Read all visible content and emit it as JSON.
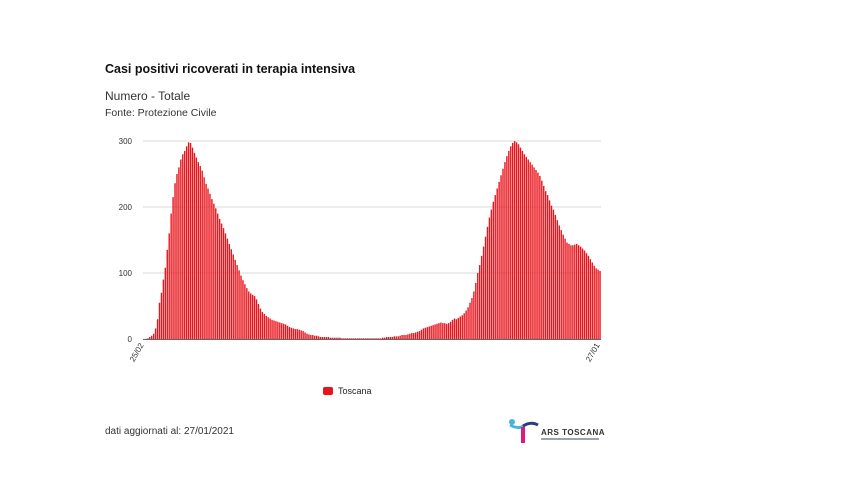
{
  "header": {
    "title": "Casi positivi ricoverati in terapia intensiva",
    "subtitle": "Numero - Totale",
    "source": "Fonte: Protezione Civile"
  },
  "footer": {
    "updated": "dati aggiornati al: 27/01/2021",
    "logo_text": "ARS TOSCANA"
  },
  "colors": {
    "bar": "#e8141b",
    "grid": "#d8d8d8",
    "axis": "#666666"
  },
  "chart_data": {
    "type": "bar",
    "title": "Casi positivi ricoverati in terapia intensiva",
    "subtitle": "Numero - Totale",
    "xlabel": "",
    "ylabel": "",
    "ylim": [
      0,
      300
    ],
    "y_ticks": [
      0,
      100,
      200,
      300
    ],
    "y_tick_labels": [
      "0",
      "100",
      "200",
      "300"
    ],
    "x_tick_labels": [
      "25/02",
      "27/01"
    ],
    "grid": true,
    "legend_position": "bottom",
    "series": [
      {
        "name": "Toscana",
        "color": "#e8141b",
        "values": [
          0,
          0,
          1,
          3,
          5,
          8,
          16,
          30,
          55,
          70,
          90,
          108,
          135,
          160,
          190,
          215,
          236,
          250,
          260,
          272,
          280,
          285,
          292,
          298,
          297,
          290,
          282,
          275,
          268,
          262,
          255,
          245,
          235,
          228,
          220,
          212,
          205,
          198,
          190,
          182,
          175,
          168,
          160,
          152,
          144,
          136,
          128,
          120,
          112,
          104,
          96,
          89,
          83,
          77,
          72,
          69,
          67,
          65,
          60,
          53,
          46,
          41,
          38,
          35,
          33,
          31,
          29,
          28,
          27,
          26,
          25,
          24,
          23,
          22,
          20,
          18,
          17,
          16,
          15,
          15,
          14,
          13,
          12,
          10,
          8,
          7,
          6,
          6,
          5,
          5,
          4,
          3,
          3,
          3,
          3,
          3,
          2,
          2,
          2,
          2,
          2,
          2,
          1,
          1,
          1,
          1,
          1,
          1,
          1,
          1,
          1,
          1,
          1,
          1,
          1,
          1,
          1,
          1,
          1,
          1,
          1,
          1,
          1,
          2,
          2,
          3,
          3,
          3,
          3,
          4,
          4,
          4,
          5,
          6,
          6,
          6,
          7,
          8,
          9,
          9,
          10,
          11,
          12,
          14,
          16,
          17,
          18,
          19,
          20,
          21,
          22,
          23,
          24,
          25,
          24,
          24,
          23,
          24,
          26,
          29,
          31,
          30,
          32,
          34,
          36,
          39,
          43,
          48,
          55,
          62,
          72,
          85,
          100,
          112,
          126,
          140,
          155,
          170,
          184,
          196,
          208,
          218,
          228,
          238,
          248,
          258,
          268,
          277,
          285,
          292,
          297,
          300,
          298,
          295,
          290,
          285,
          280,
          276,
          272,
          268,
          264,
          260,
          256,
          252,
          247,
          240,
          232,
          224,
          218,
          210,
          202,
          196,
          188,
          180,
          172,
          165,
          158,
          152,
          146,
          144,
          142,
          142,
          143,
          144,
          142,
          140,
          137,
          134,
          130,
          126,
          121,
          116,
          111,
          107,
          105,
          103
        ]
      }
    ]
  }
}
